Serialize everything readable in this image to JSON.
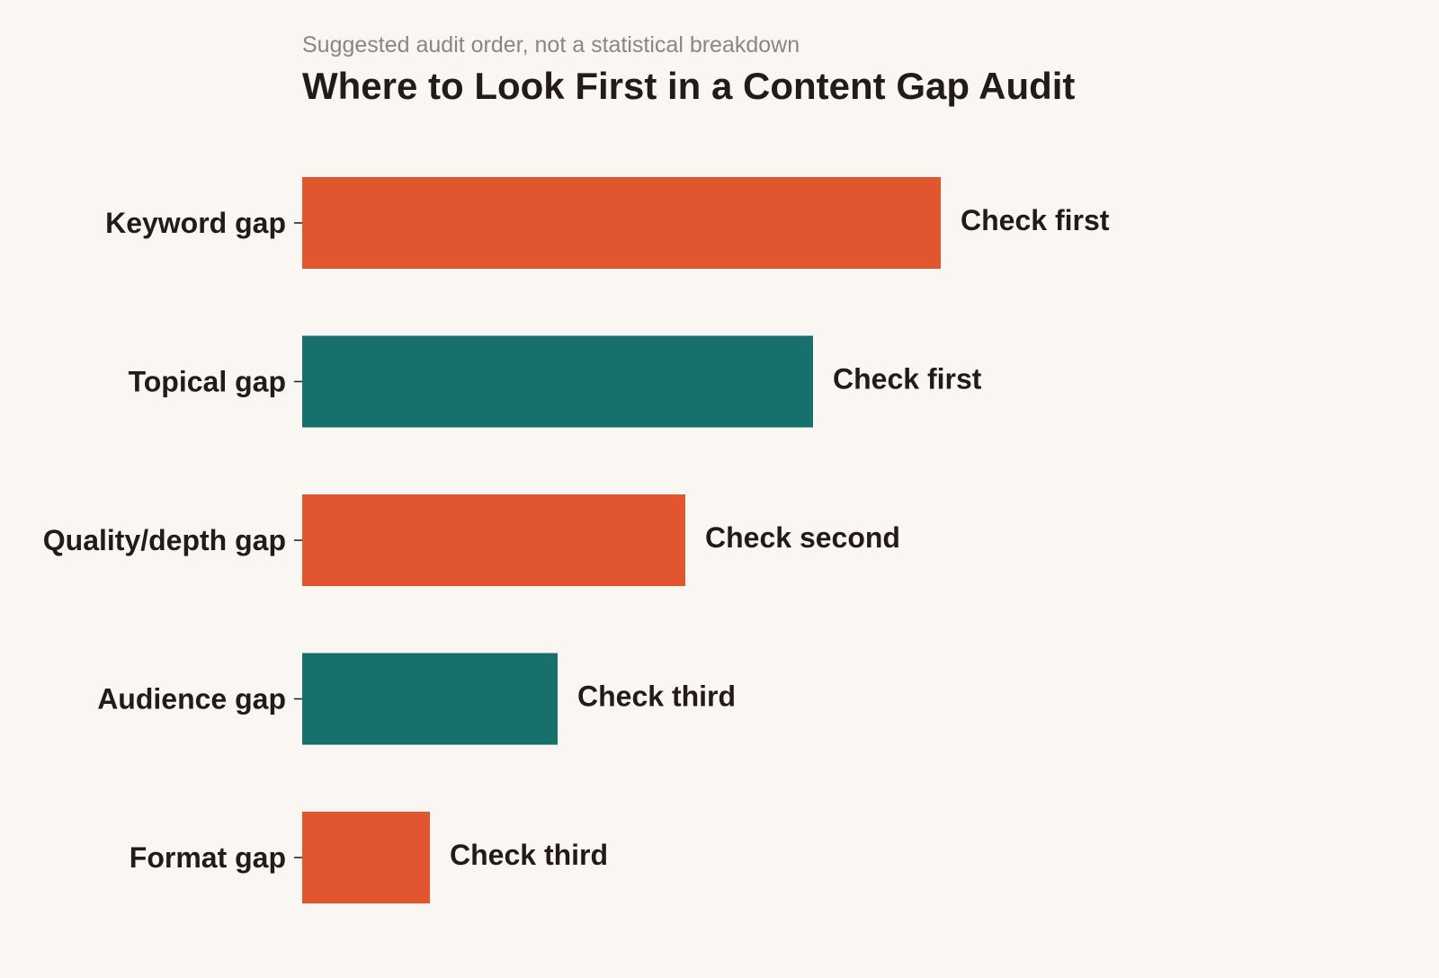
{
  "chart_data": {
    "type": "bar",
    "orientation": "horizontal",
    "title": "Where to Look First in a Content Gap Audit",
    "subtitle": "Suggested audit order, not a statistical breakdown",
    "xlabel": "",
    "ylabel": "",
    "grid": false,
    "xlim": [
      0,
      5
    ],
    "categories": [
      "Keyword gap",
      "Topical gap",
      "Quality/depth gap",
      "Audience gap",
      "Format gap"
    ],
    "values": [
      5,
      4,
      3,
      2,
      1
    ],
    "data_labels": [
      "Check first",
      "Check first",
      "Check second",
      "Check third",
      "Check third"
    ],
    "colors": [
      "#e2562f",
      "#18706d",
      "#e2562f",
      "#18706d",
      "#e2562f"
    ]
  }
}
